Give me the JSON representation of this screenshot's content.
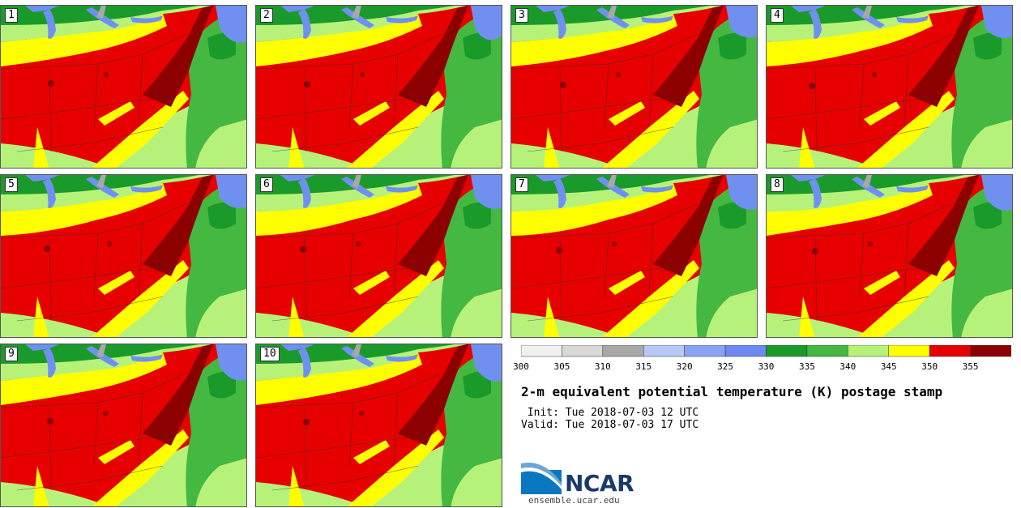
{
  "panels": [
    {
      "label": "1"
    },
    {
      "label": "2"
    },
    {
      "label": "3"
    },
    {
      "label": "4"
    },
    {
      "label": "5"
    },
    {
      "label": "6"
    },
    {
      "label": "7"
    },
    {
      "label": "8"
    },
    {
      "label": "9"
    },
    {
      "label": "10"
    }
  ],
  "colorbar": {
    "ticks": [
      "300",
      "305",
      "310",
      "315",
      "320",
      "325",
      "330",
      "335",
      "340",
      "345",
      "350",
      "355"
    ],
    "colors": [
      "#f0f0f0",
      "#d8d8d8",
      "#a8a8a8",
      "#b8c8f4",
      "#8aa2f2",
      "#6f87f0",
      "#1a9a2a",
      "#44b840",
      "#b6f27a",
      "#ffff00",
      "#e60000",
      "#8c0000"
    ]
  },
  "title": "2-m equivalent potential temperature (K) postage stamp",
  "init": " Init: Tue 2018-07-03 12 UTC",
  "valid": "Valid: Tue 2018-07-03 17 UTC",
  "logo": {
    "name": "NCAR",
    "url": "ensemble.ucar.edu"
  },
  "palette": {
    "lake": "#7090f0",
    "land_warm": "#e60000",
    "land_hot": "#8c0000",
    "band_yellow": "#ffff00",
    "band_light": "#b6f27a",
    "ocean": "#44b840",
    "north": "#1a9a2a",
    "gray": "#a8a8a8"
  }
}
